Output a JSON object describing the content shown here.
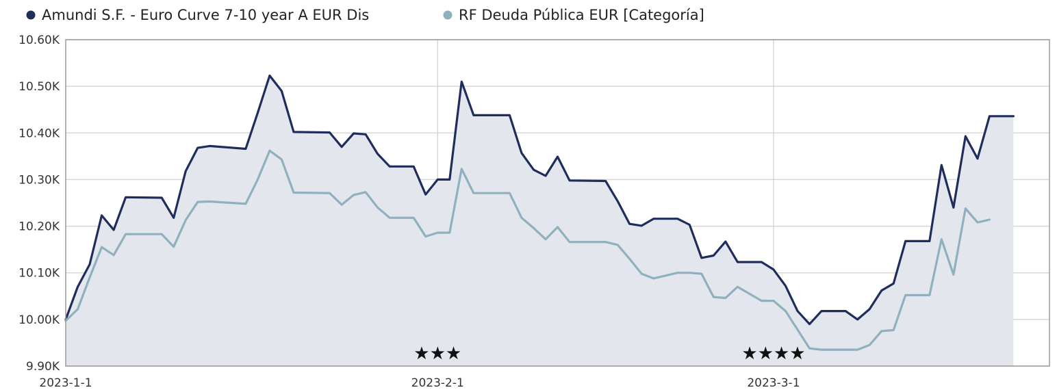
{
  "chart_data": {
    "type": "line",
    "legend_position": "top-left",
    "grid": true,
    "ylim": [
      9900,
      10600
    ],
    "yticks": [
      9900,
      10000,
      10100,
      10200,
      10300,
      10400,
      10500,
      10600
    ],
    "ytick_labels": [
      "9.90K",
      "10.00K",
      "10.10K",
      "10.20K",
      "10.30K",
      "10.40K",
      "10.50K",
      "10.60K"
    ],
    "xlim": [
      "2023-01-01",
      "2023-03-24"
    ],
    "xticks": [
      "2023-01-01",
      "2023-02-01",
      "2023-03-01"
    ],
    "xtick_labels": [
      "2023-1-1",
      "2023-2-1",
      "2023-3-1"
    ],
    "series": [
      {
        "name": "Amundi S.F. - Euro Curve 7-10 year A EUR Dis",
        "color": "#1f2d5c",
        "filled": true,
        "fill_color": "#e4e6ee",
        "points": [
          [
            "2023-01-01",
            10000
          ],
          [
            "2023-01-02",
            10070
          ],
          [
            "2023-01-03",
            10118
          ],
          [
            "2023-01-04",
            10223
          ],
          [
            "2023-01-05",
            10192
          ],
          [
            "2023-01-06",
            10262
          ],
          [
            "2023-01-09",
            10261
          ],
          [
            "2023-01-10",
            10218
          ],
          [
            "2023-01-11",
            10318
          ],
          [
            "2023-01-12",
            10368
          ],
          [
            "2023-01-13",
            10372
          ],
          [
            "2023-01-16",
            10366
          ],
          [
            "2023-01-17",
            10443
          ],
          [
            "2023-01-18",
            10523
          ],
          [
            "2023-01-19",
            10490
          ],
          [
            "2023-01-20",
            10402
          ],
          [
            "2023-01-23",
            10401
          ],
          [
            "2023-01-24",
            10370
          ],
          [
            "2023-01-25",
            10399
          ],
          [
            "2023-01-26",
            10397
          ],
          [
            "2023-01-27",
            10355
          ],
          [
            "2023-01-28",
            10328
          ],
          [
            "2023-01-30",
            10328
          ],
          [
            "2023-01-31",
            10268
          ],
          [
            "2023-02-01",
            10300
          ],
          [
            "2023-02-02",
            10300
          ],
          [
            "2023-02-03",
            10510
          ],
          [
            "2023-02-04",
            10438
          ],
          [
            "2023-02-07",
            10438
          ],
          [
            "2023-02-08",
            10357
          ],
          [
            "2023-02-09",
            10321
          ],
          [
            "2023-02-10",
            10308
          ],
          [
            "2023-02-11",
            10349
          ],
          [
            "2023-02-12",
            10298
          ],
          [
            "2023-02-15",
            10297
          ],
          [
            "2023-02-16",
            10254
          ],
          [
            "2023-02-17",
            10205
          ],
          [
            "2023-02-18",
            10201
          ],
          [
            "2023-02-19",
            10216
          ],
          [
            "2023-02-21",
            10216
          ],
          [
            "2023-02-22",
            10203
          ],
          [
            "2023-02-23",
            10132
          ],
          [
            "2023-02-24",
            10137
          ],
          [
            "2023-02-25",
            10167
          ],
          [
            "2023-02-26",
            10123
          ],
          [
            "2023-02-28",
            10123
          ],
          [
            "2023-03-01",
            10107
          ],
          [
            "2023-03-02",
            10072
          ],
          [
            "2023-03-03",
            10018
          ],
          [
            "2023-03-04",
            9990
          ],
          [
            "2023-03-05",
            10018
          ],
          [
            "2023-03-07",
            10018
          ],
          [
            "2023-03-08",
            10000
          ],
          [
            "2023-03-09",
            10022
          ],
          [
            "2023-03-10",
            10062
          ],
          [
            "2023-03-11",
            10077
          ],
          [
            "2023-03-12",
            10168
          ],
          [
            "2023-03-14",
            10168
          ],
          [
            "2023-03-15",
            10331
          ],
          [
            "2023-03-16",
            10240
          ],
          [
            "2023-03-17",
            10393
          ],
          [
            "2023-03-18",
            10345
          ],
          [
            "2023-03-19",
            10436
          ],
          [
            "2023-03-20",
            10436
          ],
          [
            "2023-03-21",
            10436
          ]
        ]
      },
      {
        "name": "RF Deuda Pública EUR [Categoría]",
        "color": "#8fb0bf",
        "filled": false,
        "points": [
          [
            "2023-01-01",
            9997
          ],
          [
            "2023-01-02",
            10022
          ],
          [
            "2023-01-03",
            10090
          ],
          [
            "2023-01-04",
            10155
          ],
          [
            "2023-01-05",
            10138
          ],
          [
            "2023-01-06",
            10183
          ],
          [
            "2023-01-09",
            10183
          ],
          [
            "2023-01-10",
            10156
          ],
          [
            "2023-01-11",
            10213
          ],
          [
            "2023-01-12",
            10252
          ],
          [
            "2023-01-13",
            10253
          ],
          [
            "2023-01-16",
            10248
          ],
          [
            "2023-01-17",
            10300
          ],
          [
            "2023-01-18",
            10362
          ],
          [
            "2023-01-19",
            10343
          ],
          [
            "2023-01-20",
            10272
          ],
          [
            "2023-01-23",
            10271
          ],
          [
            "2023-01-24",
            10246
          ],
          [
            "2023-01-25",
            10267
          ],
          [
            "2023-01-26",
            10273
          ],
          [
            "2023-01-27",
            10240
          ],
          [
            "2023-01-28",
            10218
          ],
          [
            "2023-01-30",
            10218
          ],
          [
            "2023-01-31",
            10178
          ],
          [
            "2023-02-01",
            10186
          ],
          [
            "2023-02-02",
            10186
          ],
          [
            "2023-02-03",
            10323
          ],
          [
            "2023-02-04",
            10271
          ],
          [
            "2023-02-07",
            10271
          ],
          [
            "2023-02-08",
            10218
          ],
          [
            "2023-02-09",
            10196
          ],
          [
            "2023-02-10",
            10172
          ],
          [
            "2023-02-11",
            10198
          ],
          [
            "2023-02-12",
            10166
          ],
          [
            "2023-02-15",
            10166
          ],
          [
            "2023-02-16",
            10160
          ],
          [
            "2023-02-17",
            10130
          ],
          [
            "2023-02-18",
            10098
          ],
          [
            "2023-02-19",
            10088
          ],
          [
            "2023-02-21",
            10100
          ],
          [
            "2023-02-22",
            10100
          ],
          [
            "2023-02-23",
            10098
          ],
          [
            "2023-02-24",
            10048
          ],
          [
            "2023-02-25",
            10046
          ],
          [
            "2023-02-26",
            10070
          ],
          [
            "2023-02-28",
            10040
          ],
          [
            "2023-03-01",
            10040
          ],
          [
            "2023-03-02",
            10018
          ],
          [
            "2023-03-03",
            9978
          ],
          [
            "2023-03-04",
            9938
          ],
          [
            "2023-03-05",
            9935
          ],
          [
            "2023-03-07",
            9935
          ],
          [
            "2023-03-08",
            9935
          ],
          [
            "2023-03-09",
            9945
          ],
          [
            "2023-03-10",
            9975
          ],
          [
            "2023-03-11",
            9977
          ],
          [
            "2023-03-12",
            10052
          ],
          [
            "2023-03-14",
            10052
          ],
          [
            "2023-03-15",
            10172
          ],
          [
            "2023-03-16",
            10096
          ],
          [
            "2023-03-17",
            10238
          ],
          [
            "2023-03-18",
            10208
          ],
          [
            "2023-03-19",
            10214
          ]
        ]
      }
    ],
    "annotations": [
      {
        "text": "★★★",
        "x": "2023-02-01",
        "y": 9928
      },
      {
        "text": "★★★★",
        "x": "2023-03-01",
        "y": 9928
      }
    ]
  }
}
